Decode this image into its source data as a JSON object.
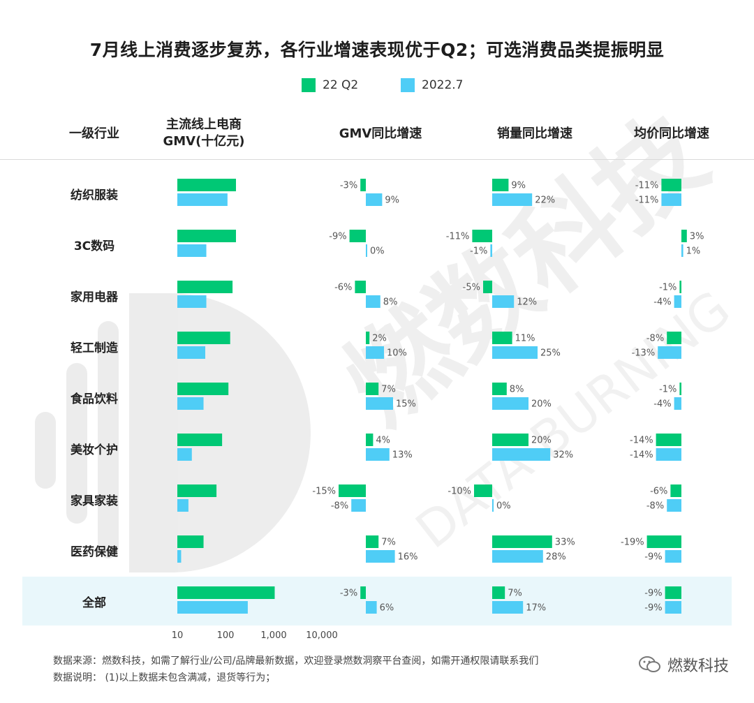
{
  "title": "7月线上消费逐步复苏，各行业增速表现优于Q2；可选消费品类提振明显",
  "legend": [
    {
      "name": "22 Q2",
      "color": "#00c875"
    },
    {
      "name": "2022.7",
      "color": "#4fcdf6"
    }
  ],
  "columns": {
    "industry": "一级行业",
    "gmv_line1": "主流线上电商",
    "gmv_line2": "GMV(十亿元)",
    "gmv_yoy": "GMV同比增速",
    "volume_yoy": "销量同比增速",
    "price_yoy": "均价同比增速"
  },
  "chart_data": {
    "type": "bar",
    "series_names": [
      "22 Q2",
      "2022.7"
    ],
    "colors": {
      "q2": "#00c875",
      "jul": "#4fcdf6"
    },
    "categories": [
      "纺织服装",
      "3C数码",
      "家用电器",
      "轻工制造",
      "食品饮料",
      "美妆个护",
      "家具家装",
      "医药保健",
      "全部"
    ],
    "gmv_axis": {
      "scale": "log",
      "ticks": [
        10,
        100,
        1000,
        10000
      ],
      "tick_labels": [
        "10",
        "100",
        "1,000",
        "10,000"
      ]
    },
    "gmv": {
      "q2": [
        165,
        165,
        140,
        125,
        115,
        85,
        65,
        35,
        1050
      ],
      "jul": [
        110,
        40,
        40,
        38,
        35,
        20,
        17,
        12,
        290
      ]
    },
    "gmv_yoy": {
      "q2": [
        -3,
        -9,
        -6,
        2,
        7,
        4,
        -15,
        7,
        -3
      ],
      "jul": [
        9,
        0,
        8,
        10,
        15,
        13,
        -8,
        16,
        6
      ]
    },
    "volume_yoy": {
      "q2": [
        9,
        -11,
        -5,
        11,
        8,
        20,
        -10,
        33,
        7
      ],
      "jul": [
        22,
        -1,
        12,
        25,
        20,
        32,
        0,
        28,
        17
      ]
    },
    "price_yoy": {
      "q2": [
        -11,
        3,
        -1,
        -8,
        -1,
        -14,
        -6,
        -19,
        -9
      ],
      "jul": [
        -11,
        1,
        -4,
        -13,
        -4,
        -14,
        -8,
        -9,
        -9
      ]
    }
  },
  "footer": {
    "source": "数据来源：燃数科技，如需了解行业/公司/品牌最新数据，欢迎登录燃数洞察平台查阅，如需开通权限请联系我们",
    "note": "数据说明：  (1)以上数据未包含满减，退货等行为；"
  },
  "watermark": {
    "cn": "燃数科技",
    "en": "DATA BURNING"
  },
  "brand": "燃数科技"
}
